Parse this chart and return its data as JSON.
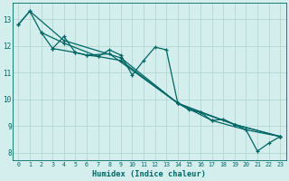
{
  "xlabel": "Humidex (Indice chaleur)",
  "bg_color": "#d4eeed",
  "grid_color": "#aed4d0",
  "line_color": "#006666",
  "xlim": [
    -0.5,
    23.5
  ],
  "ylim": [
    7.7,
    13.6
  ],
  "yticks": [
    8,
    9,
    10,
    11,
    12,
    13
  ],
  "xticks": [
    0,
    1,
    2,
    3,
    4,
    5,
    6,
    7,
    8,
    9,
    10,
    11,
    12,
    13,
    14,
    15,
    16,
    17,
    18,
    19,
    20,
    21,
    22,
    23
  ],
  "series1": [
    [
      0,
      12.8
    ],
    [
      1,
      13.3
    ],
    [
      2,
      12.5
    ],
    [
      3,
      11.9
    ],
    [
      4,
      12.35
    ],
    [
      5,
      11.75
    ],
    [
      6,
      11.65
    ],
    [
      7,
      11.6
    ],
    [
      8,
      11.85
    ],
    [
      9,
      11.65
    ],
    [
      10,
      10.9
    ],
    [
      11,
      11.45
    ],
    [
      12,
      11.95
    ],
    [
      13,
      11.85
    ],
    [
      14,
      9.85
    ],
    [
      15,
      9.6
    ],
    [
      16,
      9.5
    ],
    [
      17,
      9.2
    ],
    [
      18,
      9.25
    ],
    [
      19,
      9.05
    ],
    [
      20,
      8.85
    ],
    [
      21,
      8.05
    ],
    [
      22,
      8.35
    ],
    [
      23,
      8.6
    ]
  ],
  "series2": [
    [
      0,
      12.8
    ],
    [
      1,
      13.3
    ],
    [
      4,
      12.2
    ],
    [
      9,
      11.55
    ],
    [
      14,
      9.85
    ],
    [
      19,
      9.05
    ],
    [
      23,
      8.6
    ]
  ],
  "series3": [
    [
      2,
      12.5
    ],
    [
      4,
      12.1
    ],
    [
      7,
      11.6
    ],
    [
      9,
      11.45
    ],
    [
      14,
      9.85
    ],
    [
      17,
      9.2
    ],
    [
      20,
      8.85
    ],
    [
      23,
      8.6
    ]
  ],
  "series4": [
    [
      3,
      11.9
    ],
    [
      5,
      11.75
    ],
    [
      6,
      11.65
    ],
    [
      8,
      11.7
    ],
    [
      14,
      9.85
    ],
    [
      16,
      9.5
    ],
    [
      19,
      9.05
    ],
    [
      23,
      8.6
    ]
  ]
}
